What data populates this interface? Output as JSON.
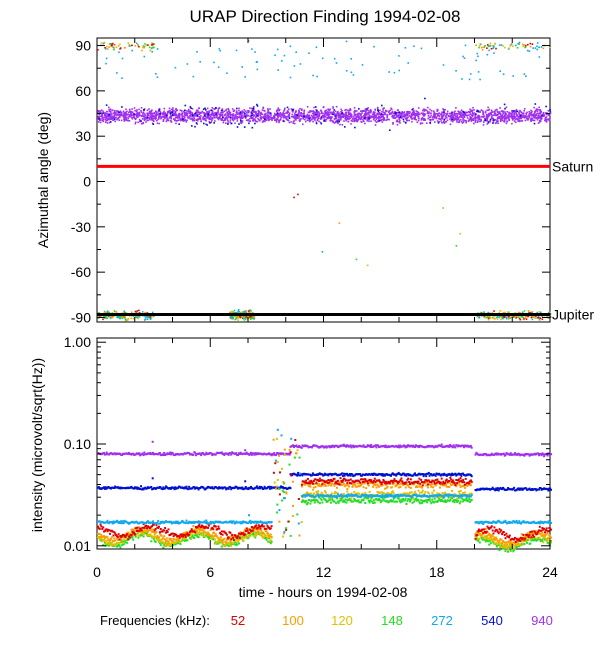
{
  "title": "URAP Direction Finding  1994-02-08",
  "colors": {
    "52": "#e00000",
    "100": "#ff9c00",
    "120": "#e0c000",
    "148": "#22dd22",
    "272": "#10a8f0",
    "540": "#0010d0",
    "940": "#a030f0"
  },
  "chart_data": [
    {
      "type": "scatter",
      "name": "azimuth",
      "ylabel": "Azimuthal angle (deg)",
      "xlim": [
        0,
        24
      ],
      "ylim": [
        -93,
        95
      ],
      "yticks": [
        90,
        60,
        30,
        0,
        -30,
        -60,
        -90
      ],
      "ytick_labels": [
        "90",
        "60",
        "30",
        "0",
        "-30",
        "-60",
        "-90"
      ],
      "reference_lines": [
        {
          "label": "Saturn",
          "value": 10,
          "color": "#ff0000"
        },
        {
          "label": "Jupiter",
          "value": -88,
          "color": "#000000"
        }
      ],
      "series": [
        {
          "name": "940",
          "description": "band",
          "center": 44,
          "spread": 5,
          "x_range": [
            0,
            24
          ]
        },
        {
          "name": "540",
          "description": "sparse outliers around band",
          "center": 44,
          "spread": 9
        },
        {
          "name": "272",
          "description": "sparse points near top",
          "center": 78,
          "spread": 12
        },
        {
          "name": "low_freq",
          "description": "clusters near -90 and 90 at 0-3h, 7-8h, 20-24h"
        }
      ]
    },
    {
      "type": "line",
      "name": "intensity",
      "ylabel": "intensity (microvolt/sqrt(Hz))",
      "xlabel": "time - hours on 1994-02-08",
      "scale": "log",
      "xlim": [
        0,
        24
      ],
      "ylim": [
        0.0093,
        1.1
      ],
      "xticks": [
        0,
        6,
        12,
        18,
        24
      ],
      "xtick_labels": [
        "0",
        "6",
        "12",
        "18",
        "24"
      ],
      "yticks": [
        1.0,
        0.1,
        0.01
      ],
      "ytick_labels": [
        "1.00",
        "0.10",
        "0.01"
      ],
      "gap": [
        19.8,
        20.0
      ],
      "series": [
        {
          "name": "940",
          "segments": [
            [
              0,
              10.2,
              0.08
            ],
            [
              10.2,
              19.8,
              0.095
            ],
            [
              20.0,
              24,
              0.079
            ]
          ]
        },
        {
          "name": "540",
          "segments": [
            [
              0,
              10.2,
              0.037
            ],
            [
              10.2,
              19.8,
              0.05
            ],
            [
              20.0,
              24,
              0.036
            ]
          ]
        },
        {
          "name": "272",
          "segments": [
            [
              0,
              9.2,
              0.017
            ],
            [
              10.8,
              19.8,
              0.031
            ],
            [
              20.0,
              24,
              0.017
            ]
          ]
        },
        {
          "name": "52",
          "segments": [
            [
              0,
              9.2,
              0.014
            ],
            [
              10.8,
              19.8,
              0.043
            ],
            [
              20.0,
              24,
              0.013
            ]
          ]
        },
        {
          "name": "100",
          "segments": [
            [
              0,
              9.2,
              0.013
            ],
            [
              10.8,
              19.8,
              0.04
            ],
            [
              20.0,
              24,
              0.012
            ]
          ]
        },
        {
          "name": "120",
          "segments": [
            [
              0,
              9.2,
              0.012
            ],
            [
              10.8,
              19.8,
              0.032
            ],
            [
              20.0,
              24,
              0.011
            ]
          ]
        },
        {
          "name": "148",
          "segments": [
            [
              0,
              9.2,
              0.0115
            ],
            [
              10.8,
              19.8,
              0.028
            ],
            [
              20.0,
              24,
              0.0105
            ]
          ]
        }
      ]
    }
  ],
  "legend": {
    "label": "Frequencies (kHz):",
    "items": [
      "52",
      "100",
      "120",
      "148",
      "272",
      "540",
      "940"
    ]
  }
}
